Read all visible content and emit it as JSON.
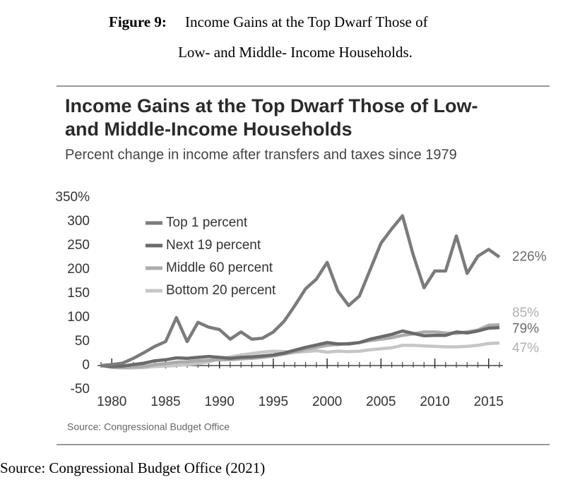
{
  "figure_caption": {
    "label": "Figure 9:",
    "line1": "Income Gains at the Top Dwarf Those of",
    "line2": "Low- and Middle- Income Households."
  },
  "chart_data": {
    "type": "line",
    "title": [
      "Income Gains at the Top Dwarf Those of Low-",
      "and Middle-Income Households"
    ],
    "subtitle": "Percent change in income after transfers and taxes since 1979",
    "source": "Source: Congressional Budget Office",
    "x": [
      1979,
      1980,
      1981,
      1982,
      1983,
      1984,
      1985,
      1986,
      1987,
      1988,
      1989,
      1990,
      1991,
      1992,
      1993,
      1994,
      1995,
      1996,
      1997,
      1998,
      1999,
      2000,
      2001,
      2002,
      2003,
      2004,
      2005,
      2006,
      2007,
      2008,
      2009,
      2010,
      2011,
      2012,
      2013,
      2014,
      2015,
      2016
    ],
    "series": [
      {
        "name": "Top 1 percent",
        "color": "#7b7b7b",
        "values": [
          0,
          2,
          5,
          15,
          27,
          40,
          50,
          100,
          50,
          90,
          80,
          75,
          55,
          70,
          55,
          57,
          70,
          92,
          125,
          160,
          180,
          215,
          155,
          125,
          145,
          200,
          255,
          285,
          312,
          230,
          162,
          197,
          197,
          270,
          192,
          228,
          242,
          226
        ]
      },
      {
        "name": "Next 19 percent",
        "color": "#6a6a6a",
        "values": [
          0,
          -2,
          -1,
          2,
          5,
          10,
          12,
          16,
          15,
          17,
          19,
          17,
          15,
          17,
          18,
          20,
          22,
          26,
          32,
          38,
          43,
          48,
          45,
          45,
          48,
          55,
          60,
          65,
          72,
          67,
          62,
          63,
          63,
          70,
          68,
          72,
          78,
          79
        ]
      },
      {
        "name": "Middle 60 percent",
        "color": "#ababab",
        "values": [
          0,
          -3,
          -4,
          -3,
          -2,
          2,
          4,
          7,
          8,
          10,
          11,
          12,
          12,
          14,
          15,
          17,
          20,
          24,
          28,
          34,
          38,
          42,
          44,
          46,
          48,
          52,
          55,
          58,
          63,
          66,
          70,
          70,
          68,
          67,
          70,
          74,
          84,
          85
        ]
      },
      {
        "name": "Bottom 20 percent",
        "color": "#c6c6c6",
        "values": [
          0,
          -4,
          -5,
          -5,
          -4,
          -2,
          -1,
          0,
          2,
          4,
          8,
          14,
          18,
          22,
          25,
          28,
          30,
          29,
          28,
          29,
          31,
          28,
          30,
          29,
          30,
          33,
          35,
          37,
          42,
          42,
          41,
          40,
          39,
          39,
          40,
          42,
          46,
          47
        ]
      }
    ],
    "annotations": [
      {
        "text": "226%",
        "value": 226,
        "color": "#6a6a6a"
      },
      {
        "text": "85%",
        "value": 85,
        "color": "#b0b0b0"
      },
      {
        "text": "79%",
        "value": 79,
        "color": "#6a6a6a"
      },
      {
        "text": "47%",
        "value": 47,
        "color": "#b0b0b0"
      }
    ],
    "xlim": [
      1979,
      2016
    ],
    "xticks": [
      1980,
      1985,
      1990,
      1995,
      2000,
      2005,
      2010,
      2015
    ],
    "ylim": [
      -50,
      350
    ],
    "yticks": [
      -50,
      0,
      50,
      100,
      150,
      200,
      250,
      300,
      {
        "value": 350,
        "label": "350%"
      }
    ],
    "legend": "upper left",
    "grid": false
  },
  "footer_source": "Source: Congressional Budget Office (2021)"
}
